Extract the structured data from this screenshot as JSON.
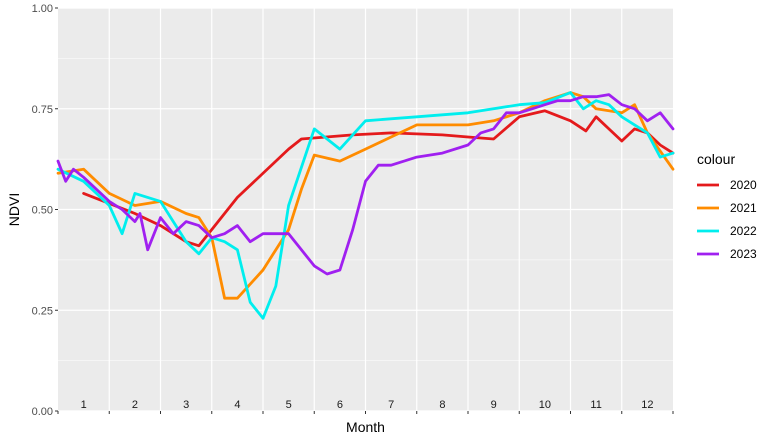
{
  "chart_data": {
    "type": "line",
    "xlabel": "Month",
    "ylabel": "NDVI",
    "ylim": [
      0,
      1
    ],
    "xlim": [
      0,
      12
    ],
    "y_ticks": [
      "0.00",
      "0.25",
      "0.50",
      "0.75",
      "1.00"
    ],
    "y_tick_values": [
      0,
      0.25,
      0.5,
      0.75,
      1.0
    ],
    "x_tick_labels": [
      "1",
      "2",
      "3",
      "4",
      "5",
      "6",
      "7",
      "8",
      "9",
      "10",
      "11",
      "12"
    ],
    "grid": true,
    "legend_position": "right",
    "legend_title": "colour",
    "series": [
      {
        "name": "2020",
        "color": "#e41a1c",
        "x": [
          0.5,
          1.5,
          2.0,
          2.5,
          2.75,
          3.5,
          4.5,
          4.75,
          5.75,
          6.5,
          7.5,
          8.0,
          8.5,
          9.0,
          9.5,
          10.0,
          10.3,
          10.5,
          10.75,
          11.0,
          11.25,
          11.5,
          11.75,
          12.0
        ],
        "y": [
          0.54,
          0.49,
          0.46,
          0.42,
          0.41,
          0.53,
          0.65,
          0.675,
          0.685,
          0.69,
          0.685,
          0.68,
          0.675,
          0.73,
          0.745,
          0.72,
          0.695,
          0.73,
          0.7,
          0.67,
          0.7,
          0.69,
          0.66,
          0.64
        ]
      },
      {
        "name": "2021",
        "color": "#ff8c00",
        "x": [
          0.0,
          0.5,
          1.0,
          1.5,
          2.0,
          2.5,
          2.75,
          3.0,
          3.25,
          3.5,
          4.0,
          4.5,
          4.75,
          5.0,
          5.5,
          6.0,
          6.5,
          7.0,
          7.5,
          8.0,
          8.5,
          9.0,
          9.5,
          10.0,
          10.25,
          10.5,
          11.0,
          11.25,
          11.5,
          12.0
        ],
        "y": [
          0.59,
          0.6,
          0.54,
          0.51,
          0.52,
          0.49,
          0.48,
          0.43,
          0.28,
          0.28,
          0.35,
          0.45,
          0.55,
          0.635,
          0.62,
          0.65,
          0.68,
          0.71,
          0.71,
          0.71,
          0.72,
          0.74,
          0.77,
          0.79,
          0.78,
          0.75,
          0.74,
          0.76,
          0.69,
          0.6
        ]
      },
      {
        "name": "2022",
        "color": "#00eeee",
        "x": [
          0.0,
          0.5,
          1.0,
          1.25,
          1.5,
          1.75,
          2.0,
          2.25,
          2.5,
          2.75,
          3.0,
          3.25,
          3.5,
          3.75,
          4.0,
          4.25,
          4.5,
          5.0,
          5.5,
          6.0,
          7.0,
          8.0,
          9.0,
          9.5,
          10.0,
          10.25,
          10.5,
          10.75,
          11.0,
          11.25,
          11.5,
          11.75,
          12.0
        ],
        "y": [
          0.6,
          0.57,
          0.51,
          0.44,
          0.54,
          0.53,
          0.52,
          0.47,
          0.42,
          0.39,
          0.43,
          0.42,
          0.4,
          0.27,
          0.23,
          0.31,
          0.51,
          0.7,
          0.65,
          0.72,
          0.73,
          0.74,
          0.76,
          0.765,
          0.79,
          0.75,
          0.77,
          0.76,
          0.73,
          0.71,
          0.69,
          0.63,
          0.64
        ]
      },
      {
        "name": "2023",
        "color": "#a020f0",
        "x": [
          0.0,
          0.15,
          0.3,
          0.5,
          0.75,
          1.0,
          1.25,
          1.5,
          1.6,
          1.75,
          2.0,
          2.25,
          2.5,
          2.75,
          3.0,
          3.25,
          3.5,
          3.75,
          4.0,
          4.25,
          4.5,
          4.75,
          5.0,
          5.25,
          5.5,
          5.75,
          6.0,
          6.25,
          6.5,
          7.0,
          7.25,
          7.5,
          8.0,
          8.25,
          8.5,
          8.75,
          9.0,
          9.25,
          9.5,
          9.75,
          10.0,
          10.25,
          10.5,
          10.75,
          11.0,
          11.25,
          11.5,
          11.75,
          12.0
        ],
        "y": [
          0.62,
          0.57,
          0.6,
          0.58,
          0.55,
          0.52,
          0.5,
          0.47,
          0.49,
          0.4,
          0.48,
          0.44,
          0.47,
          0.46,
          0.43,
          0.44,
          0.46,
          0.42,
          0.44,
          0.44,
          0.44,
          0.4,
          0.36,
          0.34,
          0.35,
          0.45,
          0.57,
          0.61,
          0.61,
          0.63,
          0.635,
          0.64,
          0.66,
          0.69,
          0.7,
          0.74,
          0.74,
          0.75,
          0.76,
          0.77,
          0.77,
          0.78,
          0.78,
          0.785,
          0.76,
          0.75,
          0.72,
          0.74,
          0.7
        ]
      }
    ]
  }
}
